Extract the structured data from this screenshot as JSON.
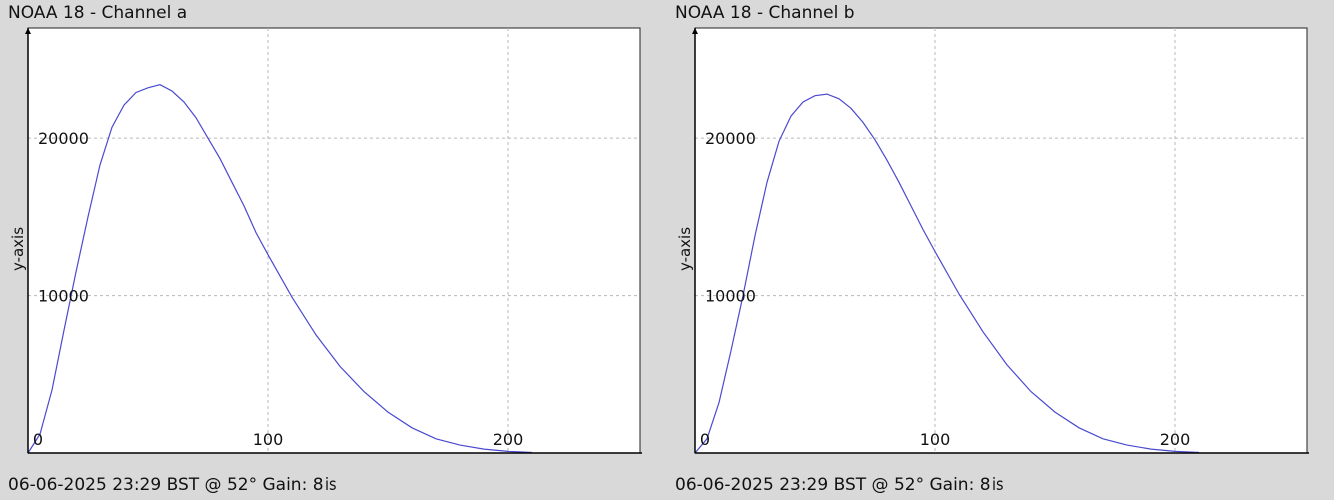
{
  "chart_data": [
    {
      "type": "line",
      "title": "NOAA 18 - Channel a",
      "footer": "06-06-2025 23:29 BST @ 52° Gain: 8",
      "footer_mark": "is",
      "xlabel": "",
      "ylabel": "y-axis",
      "xlim": [
        0,
        255
      ],
      "ylim": [
        0,
        27000
      ],
      "x_ticks": [
        0,
        100,
        200
      ],
      "y_ticks": [
        10000,
        20000
      ],
      "grid": true,
      "line_color": "#4a4ad0",
      "series": [
        {
          "x": [
            0,
            5,
            10,
            15,
            20,
            25,
            30,
            35,
            40,
            45,
            50,
            55,
            60,
            65,
            70,
            75,
            80,
            85,
            90,
            95,
            100,
            110,
            120,
            130,
            140,
            150,
            160,
            170,
            180,
            190,
            200,
            210
          ],
          "values": [
            0,
            1200,
            4000,
            7800,
            11500,
            15000,
            18300,
            20700,
            22100,
            22900,
            23200,
            23400,
            23000,
            22300,
            21300,
            20000,
            18700,
            17200,
            15700,
            14000,
            12600,
            9900,
            7500,
            5500,
            3900,
            2600,
            1600,
            900,
            500,
            250,
            100,
            30
          ]
        }
      ]
    },
    {
      "type": "line",
      "title": "NOAA 18 - Channel b",
      "footer": "06-06-2025 23:29 BST @ 52° Gain: 8",
      "footer_mark": "is",
      "xlabel": "",
      "ylabel": "y-axis",
      "xlim": [
        0,
        255
      ],
      "ylim": [
        0,
        27000
      ],
      "x_ticks": [
        0,
        100,
        200
      ],
      "y_ticks": [
        10000,
        20000
      ],
      "grid": true,
      "line_color": "#4a4ad0",
      "series": [
        {
          "x": [
            0,
            5,
            10,
            15,
            20,
            25,
            30,
            35,
            40,
            45,
            50,
            55,
            60,
            65,
            70,
            75,
            80,
            85,
            90,
            95,
            100,
            110,
            120,
            130,
            140,
            150,
            160,
            170,
            180,
            190,
            200,
            210
          ],
          "values": [
            0,
            900,
            3200,
            6500,
            10000,
            13800,
            17200,
            19800,
            21400,
            22300,
            22700,
            22800,
            22500,
            21900,
            21000,
            19900,
            18600,
            17200,
            15700,
            14200,
            12800,
            10100,
            7700,
            5600,
            3900,
            2600,
            1600,
            900,
            500,
            250,
            100,
            30
          ]
        }
      ]
    }
  ]
}
